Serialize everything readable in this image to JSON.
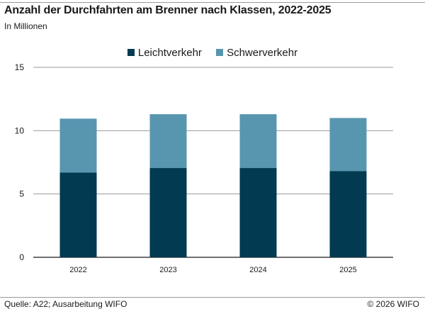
{
  "header": {
    "title": "Anzahl der Durchfahrten am Brenner nach Klassen, 2022-2025",
    "subtitle": "In Millionen"
  },
  "footer": {
    "source": "Quelle: A22; Ausarbeitung WIFO",
    "copyright": "© 2026 WIFO"
  },
  "colors": {
    "leichtverkehr": "#013a51",
    "schwerverkehr": "#5896b0",
    "grid": "#9a9a9a",
    "axis": "#1a1a1a"
  },
  "chart_data": {
    "type": "bar",
    "stacked": true,
    "title": "Anzahl der Durchfahrten am Brenner nach Klassen, 2022-2025",
    "subtitle": "In Millionen",
    "categories": [
      "2022",
      "2023",
      "2024",
      "2025"
    ],
    "series": [
      {
        "name": "Leichtverkehr",
        "values": [
          6.7,
          7.05,
          7.05,
          6.8
        ],
        "color": "#013a51"
      },
      {
        "name": "Schwerverkehr",
        "values": [
          4.25,
          4.25,
          4.25,
          4.2
        ],
        "color": "#5896b0"
      }
    ],
    "yticks": [
      0,
      5,
      10,
      15
    ],
    "ylim": [
      0,
      15
    ],
    "grid": true,
    "legend_position": "top-center"
  }
}
